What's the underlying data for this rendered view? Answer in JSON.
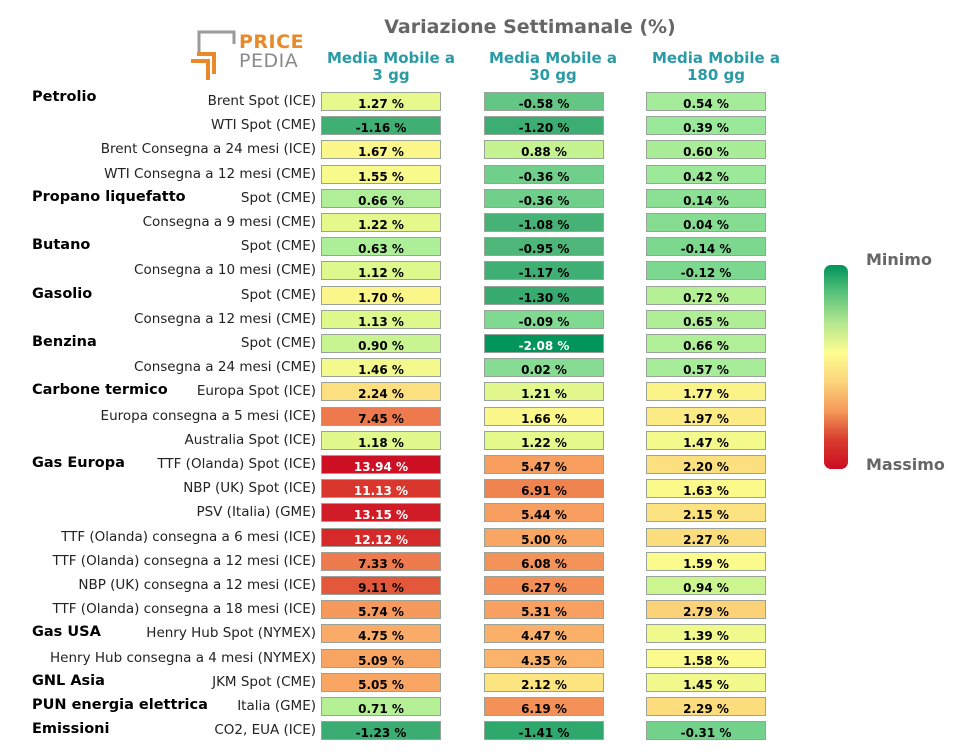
{
  "chart_data": {
    "type": "table",
    "title": "Variazione Settimanale (%)",
    "columns": [
      "Media Mobile a\n3 gg",
      "Media Mobile a\n30 gg",
      "Media Mobile a\n180 gg"
    ],
    "unit": "%",
    "legend": {
      "min_label": "Minimo",
      "max_label": "Massimo",
      "placement": "right"
    },
    "color_scale": [
      "#00945a",
      "#5cc47c",
      "#b5e890",
      "#fdfd91",
      "#fcd57c",
      "#f59a5a",
      "#d83b2e",
      "#cc0d22"
    ],
    "groups": [
      {
        "name": "Petrolio",
        "rows": [
          {
            "label": "Brent Spot (ICE)",
            "values": [
              1.27,
              -0.58,
              0.54
            ]
          },
          {
            "label": "WTI Spot (CME)",
            "values": [
              -1.16,
              -1.2,
              0.39
            ]
          },
          {
            "label": "Brent Consegna a 24 mesi (ICE)",
            "values": [
              1.67,
              0.88,
              0.6
            ]
          },
          {
            "label": "WTI Consegna a 12 mesi (CME)",
            "values": [
              1.55,
              -0.36,
              0.42
            ]
          }
        ]
      },
      {
        "name": "Propano liquefatto",
        "rows": [
          {
            "label": "Spot (CME)",
            "values": [
              0.66,
              -0.36,
              0.14
            ]
          },
          {
            "label": "Consegna a 9 mesi (CME)",
            "values": [
              1.22,
              -1.08,
              0.04
            ]
          }
        ]
      },
      {
        "name": "Butano",
        "rows": [
          {
            "label": "Spot (CME)",
            "values": [
              0.63,
              -0.95,
              -0.14
            ]
          },
          {
            "label": "Consegna a 10 mesi (CME)",
            "values": [
              1.12,
              -1.17,
              -0.12
            ]
          }
        ]
      },
      {
        "name": "Gasolio",
        "rows": [
          {
            "label": "Spot (CME)",
            "values": [
              1.7,
              -1.3,
              0.72
            ]
          },
          {
            "label": "Consegna a 12 mesi (CME)",
            "values": [
              1.13,
              -0.09,
              0.65
            ]
          }
        ]
      },
      {
        "name": "Benzina",
        "rows": [
          {
            "label": "Spot (CME)",
            "values": [
              0.9,
              -2.08,
              0.66
            ]
          },
          {
            "label": "Consegna a 24 mesi (CME)",
            "values": [
              1.46,
              0.02,
              0.57
            ]
          }
        ]
      },
      {
        "name": "Carbone termico",
        "rows": [
          {
            "label": "Europa Spot (ICE)",
            "values": [
              2.24,
              1.21,
              1.77
            ]
          },
          {
            "label": "Europa consegna a 5 mesi (ICE)",
            "values": [
              7.45,
              1.66,
              1.97
            ]
          },
          {
            "label": "Australia Spot (ICE)",
            "values": [
              1.18,
              1.22,
              1.47
            ]
          }
        ]
      },
      {
        "name": "Gas Europa",
        "rows": [
          {
            "label": "TTF (Olanda) Spot (ICE)",
            "values": [
              13.94,
              5.47,
              2.2
            ]
          },
          {
            "label": "NBP (UK) Spot (ICE)",
            "values": [
              11.13,
              6.91,
              1.63
            ]
          },
          {
            "label": "PSV (Italia) (GME)",
            "values": [
              13.15,
              5.44,
              2.15
            ]
          },
          {
            "label": "TTF (Olanda) consegna a 6 mesi (ICE)",
            "values": [
              12.12,
              5.0,
              2.27
            ]
          },
          {
            "label": "TTF (Olanda) consegna a 12 mesi (ICE)",
            "values": [
              7.33,
              6.08,
              1.59
            ]
          },
          {
            "label": "NBP (UK) consegna a 12 mesi (ICE)",
            "values": [
              9.11,
              6.27,
              0.94
            ]
          },
          {
            "label": "TTF (Olanda) consegna a 18 mesi (ICE)",
            "values": [
              5.74,
              5.31,
              2.79
            ]
          }
        ]
      },
      {
        "name": "Gas USA",
        "rows": [
          {
            "label": "Henry Hub Spot (NYMEX)",
            "values": [
              4.75,
              4.47,
              1.39
            ]
          },
          {
            "label": "Henry Hub consegna a 4 mesi (NYMEX)",
            "values": [
              5.09,
              4.35,
              1.58
            ]
          }
        ]
      },
      {
        "name": "GNL Asia",
        "rows": [
          {
            "label": "JKM Spot (CME)",
            "values": [
              5.05,
              2.12,
              1.45
            ]
          }
        ]
      },
      {
        "name": "PUN energia elettrica",
        "rows": [
          {
            "label": "Italia (GME)",
            "values": [
              0.71,
              6.19,
              2.29
            ]
          }
        ]
      },
      {
        "name": "Emissioni",
        "rows": [
          {
            "label": "CO2, EUA (ICE)",
            "values": [
              -1.23,
              -1.41,
              -0.31
            ]
          }
        ]
      }
    ]
  },
  "logo": {
    "word_top": "PRICE",
    "word_bottom": "PEDIA",
    "color_orange": "#e8892a",
    "color_grey": "#8a8a8a"
  }
}
